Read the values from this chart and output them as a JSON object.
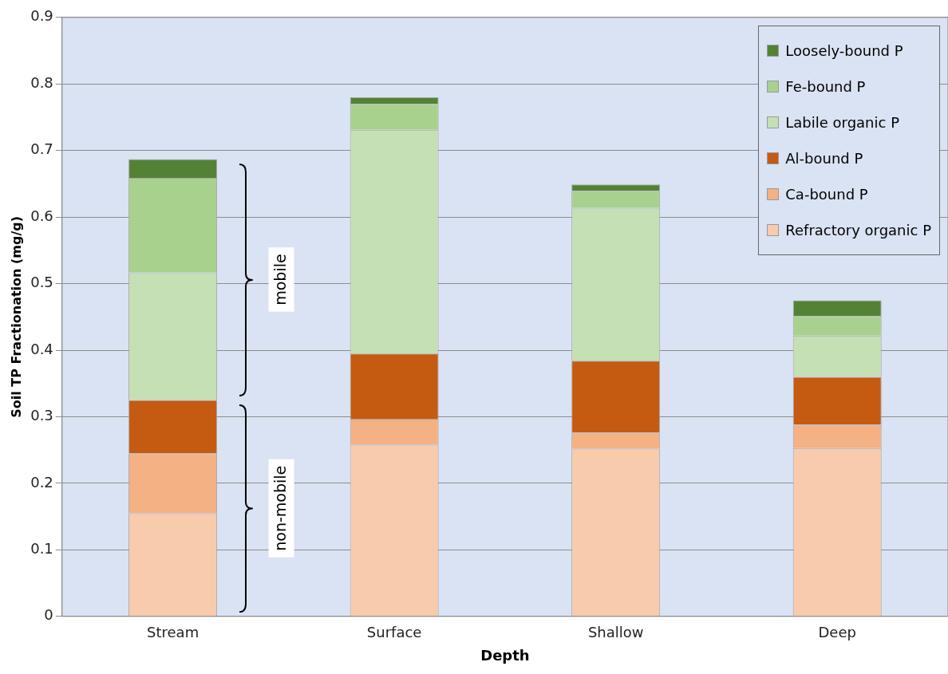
{
  "chart_data": {
    "type": "bar",
    "stacked": true,
    "xlabel": "Depth",
    "ylabel": "Soil TP Fractionation (mg/g)",
    "categories": [
      "Stream",
      "Surface",
      "Shallow",
      "Deep"
    ],
    "series": [
      {
        "name": "Refractory organic P",
        "color": "#f8cbad",
        "values": [
          0.155,
          0.258,
          0.252,
          0.253
        ]
      },
      {
        "name": "Ca-bound P",
        "color": "#f4b183",
        "values": [
          0.09,
          0.038,
          0.024,
          0.035
        ]
      },
      {
        "name": "Al-bound P",
        "color": "#c55a11",
        "values": [
          0.08,
          0.099,
          0.108,
          0.072
        ]
      },
      {
        "name": "Labile organic P",
        "color": "#c5e0b4",
        "values": [
          0.192,
          0.336,
          0.23,
          0.062
        ]
      },
      {
        "name": "Fe-bound P",
        "color": "#a9d18e",
        "values": [
          0.142,
          0.039,
          0.025,
          0.029
        ]
      },
      {
        "name": "Loosely-bound P",
        "color": "#548235",
        "values": [
          0.028,
          0.01,
          0.01,
          0.024
        ]
      }
    ],
    "ylim": [
      0,
      0.9
    ],
    "yticks": [
      0,
      0.1,
      0.2,
      0.3,
      0.4,
      0.5,
      0.6,
      0.7,
      0.8,
      0.9
    ],
    "grid": "y",
    "legend": "top right",
    "annotations": [
      "mobile",
      "non-mobile"
    ]
  }
}
